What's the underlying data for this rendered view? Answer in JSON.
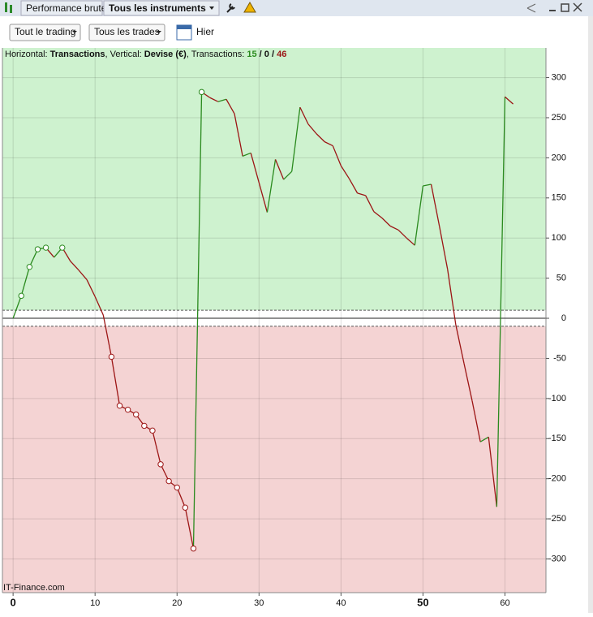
{
  "window": {
    "tab": "Performance brute",
    "instruments": "Tous les instruments"
  },
  "toolbar": {
    "filter1": "Tout le trading",
    "filter2": "Tous les trades",
    "period": "Hier"
  },
  "chart_data": {
    "type": "line",
    "header": {
      "h_label": "Horizontal: ",
      "h_value": "Transactions",
      "v_label": ", Vertical: ",
      "v_value": "Devise (€)",
      "t_label": ", Transactions: ",
      "wins": "15",
      "sep1": " / ",
      "even": "0",
      "sep2": " / ",
      "losses": "46"
    },
    "watermark": "IT-Finance.com",
    "x": [
      0,
      1,
      2,
      3,
      4,
      5,
      6,
      7,
      8,
      9,
      10,
      11,
      12,
      13,
      14,
      15,
      16,
      17,
      18,
      19,
      20,
      21,
      22,
      23,
      24,
      25,
      26,
      27,
      28,
      29,
      30,
      31,
      32,
      33,
      34,
      35,
      36,
      37,
      38,
      39,
      40,
      41,
      42,
      43,
      44,
      45,
      46,
      47,
      48,
      49,
      50,
      51,
      52,
      53,
      54,
      55,
      56,
      57,
      58,
      59,
      60,
      61
    ],
    "values": [
      0,
      28,
      64,
      86,
      88,
      76,
      88,
      71,
      60,
      48,
      27,
      4,
      -48,
      -109,
      -114,
      -120,
      -134,
      -140,
      -182,
      -203,
      -211,
      -236,
      -287,
      282,
      275,
      270,
      273,
      255,
      202,
      206,
      169,
      132,
      198,
      173,
      183,
      263,
      242,
      230,
      220,
      215,
      190,
      174,
      156,
      153,
      133,
      125,
      115,
      110,
      100,
      91,
      165,
      167,
      115,
      61,
      -8,
      -56,
      -103,
      -154,
      -148,
      -235,
      276,
      267
    ],
    "markers": [
      1,
      2,
      3,
      4,
      6,
      12,
      13,
      14,
      15,
      16,
      17,
      18,
      19,
      20,
      21,
      22,
      23
    ],
    "rise_color": "#2a8a1e",
    "fall_color": "#9c1515",
    "upper_zone_color": "#cef2cf",
    "lower_zone_color": "#f4d3d3",
    "thresholds": [
      10,
      -10
    ],
    "xlim": [
      -1.3,
      65
    ],
    "ylim": [
      -342,
      337
    ],
    "xticks": [
      0,
      10,
      20,
      30,
      40,
      50,
      60
    ],
    "bold_xticks": [
      0,
      50
    ],
    "yticks": [
      -300,
      -250,
      -200,
      -150,
      -100,
      -50,
      0,
      50,
      100,
      150,
      200,
      250,
      300
    ],
    "grid": true
  }
}
